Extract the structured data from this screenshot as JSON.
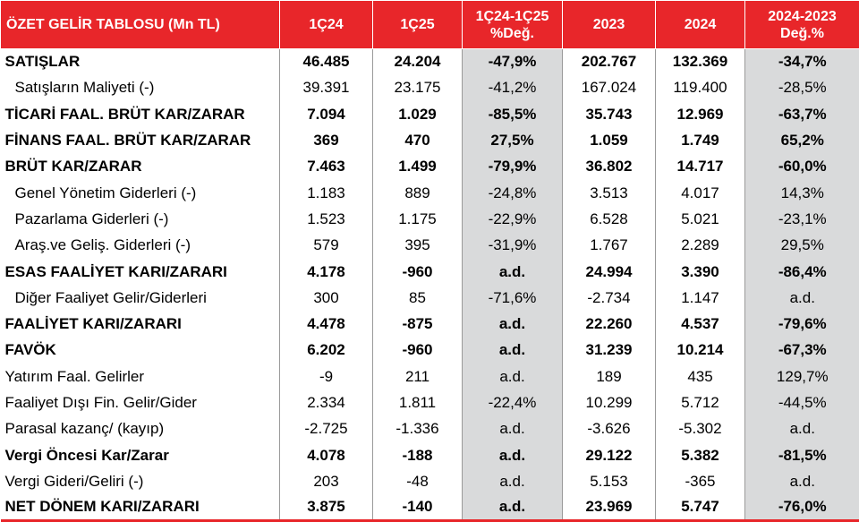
{
  "header": {
    "title": "ÖZET GELİR TABLOSU (Mn TL)",
    "col_1q24": "1Ç24",
    "col_1q25": "1Ç25",
    "col_chg_q_line1": "1Ç24-1Ç25",
    "col_chg_q_line2": "%Değ.",
    "col_2023": "2023",
    "col_2024": "2024",
    "col_chg_y_line1": "2024-2023",
    "col_chg_y_line2": "Değ.%"
  },
  "colors": {
    "header_bg": "#e8262a",
    "shade": "#d9dadb"
  },
  "rows": [
    {
      "label": "SATIŞLAR",
      "q124": "46.485",
      "q125": "24.204",
      "chg_q": "-47,9%",
      "y2023": "202.767",
      "y2024": "132.369",
      "chg_y": "-34,7%"
    },
    {
      "label": "Satışların Maliyeti (-)",
      "q124": "39.391",
      "q125": "23.175",
      "chg_q": "-41,2%",
      "y2023": "167.024",
      "y2024": "119.400",
      "chg_y": "-28,5%"
    },
    {
      "label": "TİCARİ FAAL. BRÜT KAR/ZARAR",
      "q124": "7.094",
      "q125": "1.029",
      "chg_q": "-85,5%",
      "y2023": "35.743",
      "y2024": "12.969",
      "chg_y": "-63,7%"
    },
    {
      "label": "FİNANS FAAL. BRÜT KAR/ZARAR",
      "q124": "369",
      "q125": "470",
      "chg_q": "27,5%",
      "y2023": "1.059",
      "y2024": "1.749",
      "chg_y": "65,2%"
    },
    {
      "label": "BRÜT KAR/ZARAR",
      "q124": "7.463",
      "q125": "1.499",
      "chg_q": "-79,9%",
      "y2023": "36.802",
      "y2024": "14.717",
      "chg_y": "-60,0%"
    },
    {
      "label": "Genel Yönetim Giderleri (-)",
      "q124": "1.183",
      "q125": "889",
      "chg_q": "-24,8%",
      "y2023": "3.513",
      "y2024": "4.017",
      "chg_y": "14,3%"
    },
    {
      "label": "Pazarlama Giderleri (-)",
      "q124": "1.523",
      "q125": "1.175",
      "chg_q": "-22,9%",
      "y2023": "6.528",
      "y2024": "5.021",
      "chg_y": "-23,1%"
    },
    {
      "label": "Araş.ve Geliş. Giderleri (-)",
      "q124": "579",
      "q125": "395",
      "chg_q": "-31,9%",
      "y2023": "1.767",
      "y2024": "2.289",
      "chg_y": "29,5%"
    },
    {
      "label": "ESAS FAALİYET KARI/ZARARI",
      "q124": "4.178",
      "q125": "-960",
      "chg_q": "a.d.",
      "y2023": "24.994",
      "y2024": "3.390",
      "chg_y": "-86,4%"
    },
    {
      "label": "Diğer Faaliyet Gelir/Giderleri",
      "q124": "300",
      "q125": "85",
      "chg_q": "-71,6%",
      "y2023": "-2.734",
      "y2024": "1.147",
      "chg_y": "a.d."
    },
    {
      "label": "FAALİYET KARI/ZARARI",
      "q124": "4.478",
      "q125": "-875",
      "chg_q": "a.d.",
      "y2023": "22.260",
      "y2024": "4.537",
      "chg_y": "-79,6%"
    },
    {
      "label": "FAVÖK",
      "q124": "6.202",
      "q125": "-960",
      "chg_q": "a.d.",
      "y2023": "31.239",
      "y2024": "10.214",
      "chg_y": "-67,3%"
    },
    {
      "label": "Yatırım Faal. Gelirler",
      "q124": "-9",
      "q125": "211",
      "chg_q": "a.d.",
      "y2023": "189",
      "y2024": "435",
      "chg_y": "129,7%"
    },
    {
      "label": "Faaliyet Dışı Fin. Gelir/Gider",
      "q124": "2.334",
      "q125": "1.811",
      "chg_q": "-22,4%",
      "y2023": "10.299",
      "y2024": "5.712",
      "chg_y": "-44,5%"
    },
    {
      "label": "Parasal kazanç/ (kayıp)",
      "q124": "-2.725",
      "q125": "-1.336",
      "chg_q": "a.d.",
      "y2023": "-3.626",
      "y2024": "-5.302",
      "chg_y": "a.d."
    },
    {
      "label": "Vergi Öncesi Kar/Zarar",
      "q124": "4.078",
      "q125": "-188",
      "chg_q": "a.d.",
      "y2023": "29.122",
      "y2024": "5.382",
      "chg_y": "-81,5%"
    },
    {
      "label": "Vergi Gideri/Geliri (-)",
      "q124": "203",
      "q125": "-48",
      "chg_q": "a.d.",
      "y2023": "5.153",
      "y2024": "-365",
      "chg_y": "a.d."
    },
    {
      "label": "NET DÖNEM KARI/ZARARI",
      "q124": "3.875",
      "q125": "-140",
      "chg_q": "a.d.",
      "y2023": "23.969",
      "y2024": "5.747",
      "chg_y": "-76,0%"
    }
  ]
}
